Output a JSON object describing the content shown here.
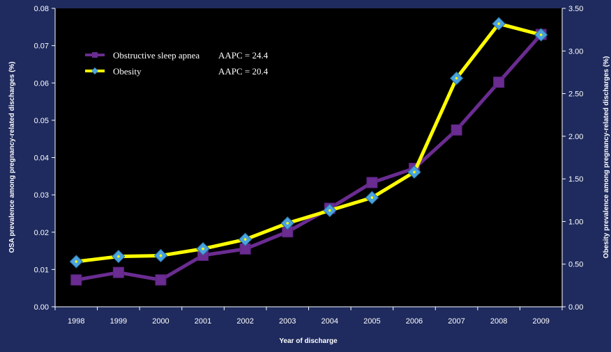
{
  "chart_data": {
    "type": "line",
    "categories": [
      "1998",
      "1999",
      "2000",
      "2001",
      "2002",
      "2003",
      "2004",
      "2005",
      "2006",
      "2007",
      "2008",
      "2009"
    ],
    "xlabel": "Year of discharge",
    "ylabel_left": "OSA prevalence among pregnancy-related discharges (%)",
    "ylabel_right": "Obesity prevalence among pregnancy-related discharges (%)",
    "ylim_left": [
      0,
      0.08
    ],
    "ylim_right": [
      0,
      3.5
    ],
    "yticks_left": [
      "0.00",
      "0.01",
      "0.02",
      "0.03",
      "0.04",
      "0.05",
      "0.06",
      "0.07",
      "0.08"
    ],
    "yticks_right": [
      "0.00",
      "0.50",
      "1.00",
      "1.50",
      "2.00",
      "2.50",
      "3.00",
      "3.50"
    ],
    "grid": false,
    "legend_position": "top-left",
    "plot_background": "#000000",
    "page_background": "#1f2b5e",
    "series": [
      {
        "name": "Obstructive sleep apnea",
        "aapc": "AAPC = 24.4",
        "axis": "left",
        "color": "#6a2c91",
        "marker": "square",
        "marker_color": "#6a2c91",
        "values": [
          0.0072,
          0.0092,
          0.0072,
          0.0138,
          0.0155,
          0.0201,
          0.0264,
          0.0333,
          0.0371,
          0.0474,
          0.0602,
          0.073
        ]
      },
      {
        "name": "Obesity",
        "aapc": "AAPC = 20.4",
        "axis": "right",
        "color": "#ffff00",
        "marker": "diamond",
        "marker_color": "#4aa3df",
        "values": [
          0.53,
          0.59,
          0.6,
          0.68,
          0.79,
          0.98,
          1.13,
          1.28,
          1.58,
          2.68,
          3.32,
          3.19
        ]
      }
    ]
  }
}
